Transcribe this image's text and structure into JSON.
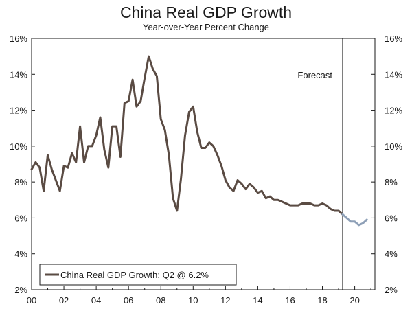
{
  "chart_data": {
    "type": "line",
    "title": "China Real GDP Growth",
    "subtitle": "Year-over-Year Percent Change",
    "xlabel": "",
    "ylabel": "",
    "xlim": [
      2000,
      2021.25
    ],
    "ylim": [
      2,
      16
    ],
    "x_tick_labels": [
      "00",
      "02",
      "04",
      "06",
      "08",
      "10",
      "12",
      "14",
      "16",
      "18",
      "20"
    ],
    "x_tick_values": [
      2000,
      2002,
      2004,
      2006,
      2008,
      2010,
      2012,
      2014,
      2016,
      2018,
      2020
    ],
    "y_tick_values": [
      2,
      4,
      6,
      8,
      10,
      12,
      14,
      16
    ],
    "y_tick_labels": [
      "2%",
      "4%",
      "6%",
      "8%",
      "10%",
      "12%",
      "14%",
      "16%"
    ],
    "forecast_start": 2019.25,
    "forecast_label": "Forecast",
    "legend": {
      "label": "China Real GDP Growth: Q2 @ 6.2%",
      "position": "bottom-left"
    },
    "series": [
      {
        "name": "China Real GDP Growth",
        "kind": "actual",
        "color": "#5a4b43",
        "x": [
          2000.0,
          2000.25,
          2000.5,
          2000.75,
          2001.0,
          2001.25,
          2001.5,
          2001.75,
          2002.0,
          2002.25,
          2002.5,
          2002.75,
          2003.0,
          2003.25,
          2003.5,
          2003.75,
          2004.0,
          2004.25,
          2004.5,
          2004.75,
          2005.0,
          2005.25,
          2005.5,
          2005.75,
          2006.0,
          2006.25,
          2006.5,
          2006.75,
          2007.0,
          2007.25,
          2007.5,
          2007.75,
          2008.0,
          2008.25,
          2008.5,
          2008.75,
          2009.0,
          2009.25,
          2009.5,
          2009.75,
          2010.0,
          2010.25,
          2010.5,
          2010.75,
          2011.0,
          2011.25,
          2011.5,
          2011.75,
          2012.0,
          2012.25,
          2012.5,
          2012.75,
          2013.0,
          2013.25,
          2013.5,
          2013.75,
          2014.0,
          2014.25,
          2014.5,
          2014.75,
          2015.0,
          2015.25,
          2015.5,
          2015.75,
          2016.0,
          2016.25,
          2016.5,
          2016.75,
          2017.0,
          2017.25,
          2017.5,
          2017.75,
          2018.0,
          2018.25,
          2018.5,
          2018.75,
          2019.0,
          2019.25
        ],
        "values": [
          8.7,
          9.1,
          8.8,
          7.5,
          9.5,
          8.7,
          8.1,
          7.5,
          8.9,
          8.8,
          9.6,
          9.1,
          11.1,
          9.1,
          10.0,
          10.0,
          10.6,
          11.6,
          9.8,
          8.8,
          11.1,
          11.1,
          9.4,
          12.4,
          12.5,
          13.7,
          12.2,
          12.5,
          13.8,
          15.0,
          14.3,
          13.9,
          11.5,
          10.9,
          9.5,
          7.1,
          6.4,
          8.2,
          10.6,
          11.9,
          12.2,
          10.8,
          9.9,
          9.9,
          10.2,
          10.0,
          9.5,
          8.9,
          8.1,
          7.7,
          7.5,
          8.1,
          7.9,
          7.6,
          7.9,
          7.7,
          7.4,
          7.5,
          7.1,
          7.2,
          7.0,
          7.0,
          6.9,
          6.8,
          6.7,
          6.7,
          6.7,
          6.8,
          6.8,
          6.8,
          6.7,
          6.7,
          6.8,
          6.7,
          6.5,
          6.4,
          6.4,
          6.2
        ]
      },
      {
        "name": "Forecast",
        "kind": "forecast",
        "color": "#8ea0b7",
        "x": [
          2019.25,
          2019.5,
          2019.75,
          2020.0,
          2020.25,
          2020.5,
          2020.75
        ],
        "values": [
          6.2,
          6.0,
          5.8,
          5.8,
          5.6,
          5.7,
          5.9
        ]
      }
    ]
  }
}
